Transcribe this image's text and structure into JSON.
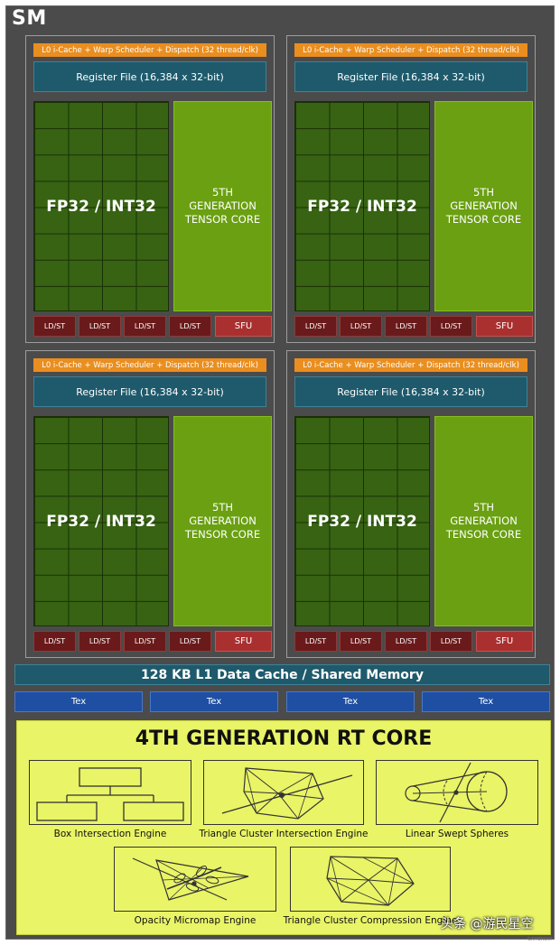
{
  "sm_label": "SM",
  "quadrants": [
    {
      "scheduler": "L0 i-Cache + Warp Scheduler + Dispatch (32 thread/clk)",
      "register_file": "Register File (16,384 x 32-bit)",
      "fp_label": "FP32 / INT32",
      "tensor_lines": [
        "5TH",
        "GENERATION",
        "TENSOR CORE"
      ],
      "ldst": [
        "LD/ST",
        "LD/ST",
        "LD/ST",
        "LD/ST"
      ],
      "sfu": "SFU"
    },
    {
      "scheduler": "L0 i-Cache + Warp Scheduler + Dispatch (32 thread/clk)",
      "register_file": "Register File (16,384 x 32-bit)",
      "fp_label": "FP32 / INT32",
      "tensor_lines": [
        "5TH",
        "GENERATION",
        "TENSOR CORE"
      ],
      "ldst": [
        "LD/ST",
        "LD/ST",
        "LD/ST",
        "LD/ST"
      ],
      "sfu": "SFU"
    },
    {
      "scheduler": "L0 i-Cache + Warp Scheduler + Dispatch (32 thread/clk)",
      "register_file": "Register File (16,384 x 32-bit)",
      "fp_label": "FP32 / INT32",
      "tensor_lines": [
        "5TH",
        "GENERATION",
        "TENSOR CORE"
      ],
      "ldst": [
        "LD/ST",
        "LD/ST",
        "LD/ST",
        "LD/ST"
      ],
      "sfu": "SFU"
    },
    {
      "scheduler": "L0 i-Cache + Warp Scheduler + Dispatch (32 thread/clk)",
      "register_file": "Register File (16,384 x 32-bit)",
      "fp_label": "FP32 / INT32",
      "tensor_lines": [
        "5TH",
        "GENERATION",
        "TENSOR CORE"
      ],
      "ldst": [
        "LD/ST",
        "LD/ST",
        "LD/ST",
        "LD/ST"
      ],
      "sfu": "SFU"
    }
  ],
  "l1_cache": "128 KB L1 Data Cache / Shared Memory",
  "tex_units": [
    "Tex",
    "Tex",
    "Tex",
    "Tex"
  ],
  "rt_core": {
    "title": "4TH GENERATION RT CORE",
    "engines": [
      {
        "label": "Box Intersection Engine",
        "icon": "box-hierarchy-icon"
      },
      {
        "label": "Triangle Cluster Intersection Engine",
        "icon": "triangle-mesh-ray-icon"
      },
      {
        "label": "Linear Swept Spheres",
        "icon": "swept-sphere-icon"
      },
      {
        "label": "Opacity Micromap Engine",
        "icon": "leaf-micromap-icon"
      },
      {
        "label": "Triangle Cluster Compression Engine",
        "icon": "triangle-mesh-icon"
      }
    ]
  },
  "watermark": "头条 @游民星空",
  "watermark_small": "GAMERSKY",
  "colors": {
    "background": "#4b4b4b",
    "scheduler": "#ea8e1f",
    "register_file": "#1e5a6c",
    "fp_core": "#376313",
    "tensor_core": "#6aa011",
    "ldst": "#6a1a1a",
    "sfu": "#aa3030",
    "tex": "#1f4fa2",
    "rt_core": "#e9f466"
  }
}
